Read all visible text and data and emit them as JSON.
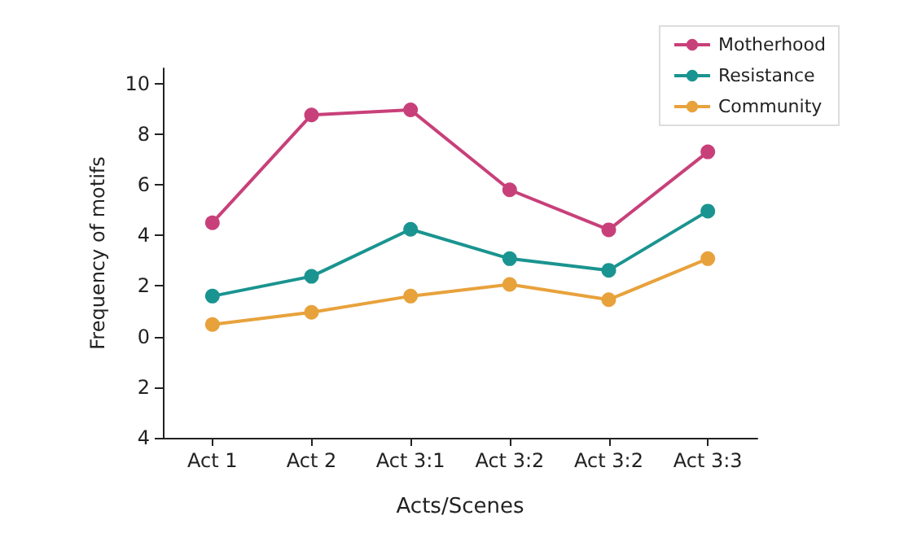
{
  "chart_data": {
    "type": "line",
    "xlabel": "Acts/Scenes",
    "ylabel": "Frequency of motifs",
    "categories": [
      "Act 1",
      "Act 2",
      "Act 3:1",
      "Act 3:2",
      "Act 3:2",
      "Act 3:3"
    ],
    "series": [
      {
        "name": "Motherhood",
        "color": "#c8407a",
        "values": [
          4.5,
          8.76,
          8.96,
          5.8,
          4.22,
          7.3
        ]
      },
      {
        "name": "Resistance",
        "color": "#1a9490",
        "values": [
          1.6,
          2.38,
          4.24,
          3.08,
          2.62,
          4.96
        ]
      },
      {
        "name": "Community",
        "color": "#e8a23c",
        "values": [
          0.48,
          0.96,
          1.6,
          2.06,
          1.46,
          3.08
        ]
      }
    ],
    "ylim": [
      -4,
      10.6
    ],
    "yticks": [
      {
        "value": -4,
        "label": "4"
      },
      {
        "value": -2,
        "label": "2"
      },
      0,
      2,
      4,
      6,
      8,
      10
    ],
    "legend": "top right",
    "marker": "circle",
    "line_style": "solid"
  }
}
